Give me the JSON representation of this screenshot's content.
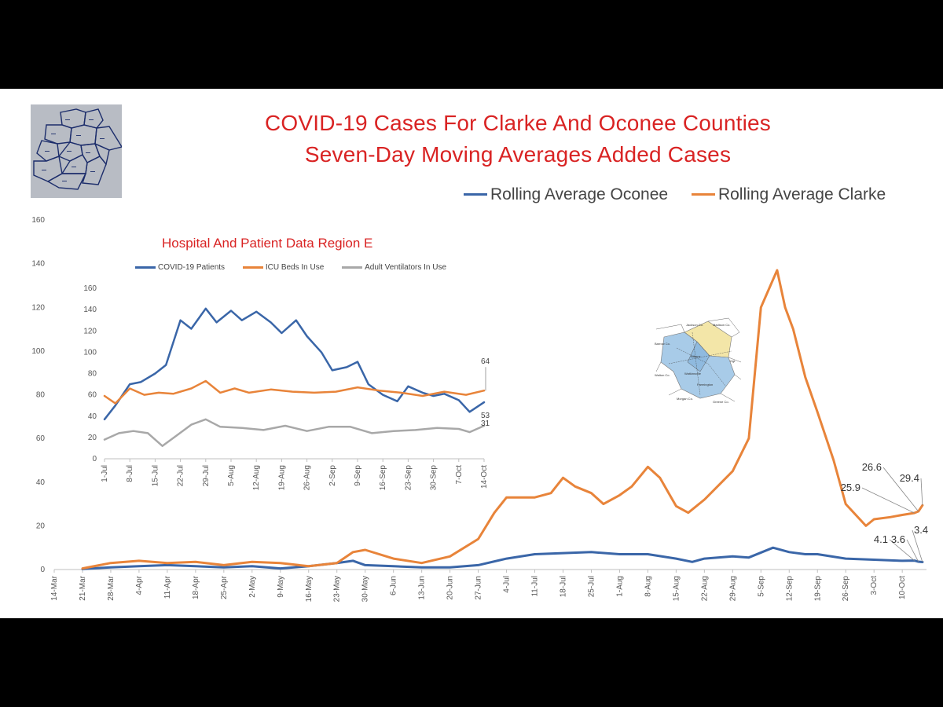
{
  "colors": {
    "oconee": "#3a66a8",
    "clarke": "#e8843a",
    "vent": "#a8a8a8",
    "title": "#d92323"
  },
  "title_line1": "COVID-19 Cases For Clarke And Oconee Counties",
  "title_line2": "Seven-Day Moving Averages Added Cases",
  "chart_data": [
    {
      "type": "line",
      "title": "COVID-19 Cases For Clarke And Oconee Counties Seven-Day Moving Averages Added Cases",
      "ylim": [
        0,
        160
      ],
      "yticks": [
        0,
        20,
        40,
        60,
        80,
        100,
        120,
        140,
        160
      ],
      "x_start": "2020-03-14",
      "x_end": "2020-10-16",
      "xticks": [
        "14-Mar",
        "21-Mar",
        "28-Mar",
        "4-Apr",
        "11-Apr",
        "18-Apr",
        "25-Apr",
        "2-May",
        "9-May",
        "16-May",
        "23-May",
        "30-May",
        "6-Jun",
        "13-Jun",
        "20-Jun",
        "27-Jun",
        "4-Jul",
        "11-Jul",
        "18-Jul",
        "25-Jul",
        "1-Aug",
        "8-Aug",
        "15-Aug",
        "22-Aug",
        "29-Aug",
        "5-Sep",
        "12-Sep",
        "19-Sep",
        "26-Sep",
        "3-Oct",
        "10-Oct"
      ],
      "legend_position": "top-right",
      "series": [
        {
          "name": "Rolling Average Oconee",
          "color": "#3a66a8",
          "points": [
            [
              "2020-03-21",
              0.2
            ],
            [
              "2020-03-28",
              1
            ],
            [
              "2020-04-04",
              1.5
            ],
            [
              "2020-04-11",
              2
            ],
            [
              "2020-04-18",
              1.5
            ],
            [
              "2020-04-25",
              1
            ],
            [
              "2020-05-02",
              1.5
            ],
            [
              "2020-05-09",
              0.5
            ],
            [
              "2020-05-16",
              1.5
            ],
            [
              "2020-05-23",
              3
            ],
            [
              "2020-05-27",
              4
            ],
            [
              "2020-05-30",
              2
            ],
            [
              "2020-06-06",
              1.5
            ],
            [
              "2020-06-13",
              1
            ],
            [
              "2020-06-20",
              1
            ],
            [
              "2020-06-27",
              2
            ],
            [
              "2020-07-04",
              5
            ],
            [
              "2020-07-11",
              7
            ],
            [
              "2020-07-18",
              7.5
            ],
            [
              "2020-07-25",
              8
            ],
            [
              "2020-08-01",
              7
            ],
            [
              "2020-08-08",
              7
            ],
            [
              "2020-08-15",
              5
            ],
            [
              "2020-08-19",
              3.5
            ],
            [
              "2020-08-22",
              5
            ],
            [
              "2020-08-29",
              6
            ],
            [
              "2020-09-02",
              5.5
            ],
            [
              "2020-09-08",
              10
            ],
            [
              "2020-09-12",
              8
            ],
            [
              "2020-09-16",
              7
            ],
            [
              "2020-09-19",
              7
            ],
            [
              "2020-09-26",
              5
            ],
            [
              "2020-10-03",
              4.5
            ],
            [
              "2020-10-10",
              4
            ],
            [
              "2020-10-13",
              4.1
            ],
            [
              "2020-10-14",
              3.6
            ],
            [
              "2020-10-15",
              3.4
            ]
          ]
        },
        {
          "name": "Rolling Average Clarke",
          "color": "#e8843a",
          "points": [
            [
              "2020-03-21",
              0.5
            ],
            [
              "2020-03-28",
              3
            ],
            [
              "2020-04-04",
              4
            ],
            [
              "2020-04-11",
              3
            ],
            [
              "2020-04-18",
              3.5
            ],
            [
              "2020-04-25",
              2
            ],
            [
              "2020-05-02",
              3.5
            ],
            [
              "2020-05-09",
              3
            ],
            [
              "2020-05-16",
              1.5
            ],
            [
              "2020-05-23",
              3
            ],
            [
              "2020-05-27",
              8
            ],
            [
              "2020-05-30",
              9
            ],
            [
              "2020-06-06",
              5
            ],
            [
              "2020-06-13",
              3
            ],
            [
              "2020-06-20",
              6
            ],
            [
              "2020-06-27",
              14
            ],
            [
              "2020-07-01",
              26
            ],
            [
              "2020-07-04",
              33
            ],
            [
              "2020-07-11",
              33
            ],
            [
              "2020-07-15",
              35
            ],
            [
              "2020-07-18",
              42
            ],
            [
              "2020-07-21",
              38
            ],
            [
              "2020-07-25",
              35
            ],
            [
              "2020-07-28",
              30
            ],
            [
              "2020-08-01",
              34
            ],
            [
              "2020-08-04",
              38
            ],
            [
              "2020-08-08",
              47
            ],
            [
              "2020-08-11",
              42
            ],
            [
              "2020-08-15",
              29
            ],
            [
              "2020-08-18",
              26
            ],
            [
              "2020-08-22",
              32
            ],
            [
              "2020-08-29",
              45
            ],
            [
              "2020-09-02",
              60
            ],
            [
              "2020-09-05",
              120
            ],
            [
              "2020-09-09",
              137
            ],
            [
              "2020-09-11",
              120
            ],
            [
              "2020-09-13",
              110
            ],
            [
              "2020-09-16",
              88
            ],
            [
              "2020-09-19",
              72
            ],
            [
              "2020-09-23",
              50
            ],
            [
              "2020-09-26",
              30
            ],
            [
              "2020-10-01",
              20
            ],
            [
              "2020-10-03",
              23
            ],
            [
              "2020-10-07",
              24
            ],
            [
              "2020-10-10",
              25
            ],
            [
              "2020-10-13",
              25.9
            ],
            [
              "2020-10-14",
              26.6
            ],
            [
              "2020-10-15",
              29.4
            ]
          ]
        }
      ],
      "annotations": [
        {
          "label": "29.4",
          "series": "Rolling Average Clarke"
        },
        {
          "label": "26.6",
          "series": "Rolling Average Clarke"
        },
        {
          "label": "25.9",
          "series": "Rolling Average Clarke"
        },
        {
          "label": "4.1",
          "series": "Rolling Average Oconee"
        },
        {
          "label": "3.6",
          "series": "Rolling Average Oconee"
        },
        {
          "label": "3.4",
          "series": "Rolling Average Oconee"
        }
      ]
    },
    {
      "type": "line",
      "title": "Hospital And Patient Data Region E",
      "ylim": [
        0,
        160
      ],
      "yticks": [
        0,
        20,
        40,
        60,
        80,
        100,
        120,
        140,
        160
      ],
      "x_start": "2020-07-01",
      "x_end": "2020-10-14",
      "xticks": [
        "1-Jul",
        "8-Jul",
        "15-Jul",
        "22-Jul",
        "29-Jul",
        "5-Aug",
        "12-Aug",
        "19-Aug",
        "26-Aug",
        "2-Sep",
        "9-Sep",
        "16-Sep",
        "23-Sep",
        "30-Sep",
        "7-Oct",
        "14-Oct"
      ],
      "legend_position": "top",
      "series": [
        {
          "name": "COVID-19 Patients",
          "color": "#3a66a8",
          "points": [
            [
              "2020-07-01",
              37
            ],
            [
              "2020-07-04",
              50
            ],
            [
              "2020-07-08",
              70
            ],
            [
              "2020-07-11",
              72
            ],
            [
              "2020-07-15",
              80
            ],
            [
              "2020-07-18",
              88
            ],
            [
              "2020-07-22",
              130
            ],
            [
              "2020-07-25",
              122
            ],
            [
              "2020-07-29",
              141
            ],
            [
              "2020-08-01",
              128
            ],
            [
              "2020-08-05",
              139
            ],
            [
              "2020-08-08",
              130
            ],
            [
              "2020-08-12",
              138
            ],
            [
              "2020-08-16",
              128
            ],
            [
              "2020-08-19",
              118
            ],
            [
              "2020-08-23",
              130
            ],
            [
              "2020-08-26",
              115
            ],
            [
              "2020-08-30",
              100
            ],
            [
              "2020-09-02",
              83
            ],
            [
              "2020-09-06",
              86
            ],
            [
              "2020-09-09",
              91
            ],
            [
              "2020-09-12",
              70
            ],
            [
              "2020-09-16",
              60
            ],
            [
              "2020-09-20",
              54
            ],
            [
              "2020-09-23",
              68
            ],
            [
              "2020-09-27",
              62
            ],
            [
              "2020-09-30",
              59
            ],
            [
              "2020-10-03",
              61
            ],
            [
              "2020-10-07",
              55
            ],
            [
              "2020-10-10",
              44
            ],
            [
              "2020-10-14",
              53
            ]
          ]
        },
        {
          "name": "ICU Beds In Use",
          "color": "#e8843a",
          "points": [
            [
              "2020-07-01",
              59
            ],
            [
              "2020-07-04",
              52
            ],
            [
              "2020-07-08",
              66
            ],
            [
              "2020-07-12",
              60
            ],
            [
              "2020-07-16",
              62
            ],
            [
              "2020-07-20",
              61
            ],
            [
              "2020-07-25",
              66
            ],
            [
              "2020-07-29",
              73
            ],
            [
              "2020-08-02",
              62
            ],
            [
              "2020-08-06",
              66
            ],
            [
              "2020-08-10",
              62
            ],
            [
              "2020-08-16",
              65
            ],
            [
              "2020-08-22",
              63
            ],
            [
              "2020-08-28",
              62
            ],
            [
              "2020-09-03",
              63
            ],
            [
              "2020-09-09",
              67
            ],
            [
              "2020-09-15",
              64
            ],
            [
              "2020-09-21",
              62
            ],
            [
              "2020-09-27",
              59
            ],
            [
              "2020-10-03",
              63
            ],
            [
              "2020-10-09",
              60
            ],
            [
              "2020-10-14",
              64
            ]
          ]
        },
        {
          "name": "Adult Ventilators In Use",
          "color": "#a8a8a8",
          "points": [
            [
              "2020-07-01",
              18
            ],
            [
              "2020-07-05",
              24
            ],
            [
              "2020-07-09",
              26
            ],
            [
              "2020-07-13",
              24
            ],
            [
              "2020-07-17",
              12
            ],
            [
              "2020-07-21",
              22
            ],
            [
              "2020-07-25",
              32
            ],
            [
              "2020-07-29",
              37
            ],
            [
              "2020-08-02",
              30
            ],
            [
              "2020-08-08",
              29
            ],
            [
              "2020-08-14",
              27
            ],
            [
              "2020-08-20",
              31
            ],
            [
              "2020-08-26",
              26
            ],
            [
              "2020-09-01",
              30
            ],
            [
              "2020-09-07",
              30
            ],
            [
              "2020-09-13",
              24
            ],
            [
              "2020-09-19",
              26
            ],
            [
              "2020-09-25",
              27
            ],
            [
              "2020-10-01",
              29
            ],
            [
              "2020-10-07",
              28
            ],
            [
              "2020-10-10",
              25
            ],
            [
              "2020-10-14",
              31
            ]
          ]
        }
      ],
      "annotations": [
        {
          "label": "64",
          "series": "ICU Beds In Use"
        },
        {
          "label": "53",
          "series": "COVID-19 Patients"
        },
        {
          "label": "31",
          "series": "Adult Ventilators In Use"
        }
      ]
    }
  ]
}
